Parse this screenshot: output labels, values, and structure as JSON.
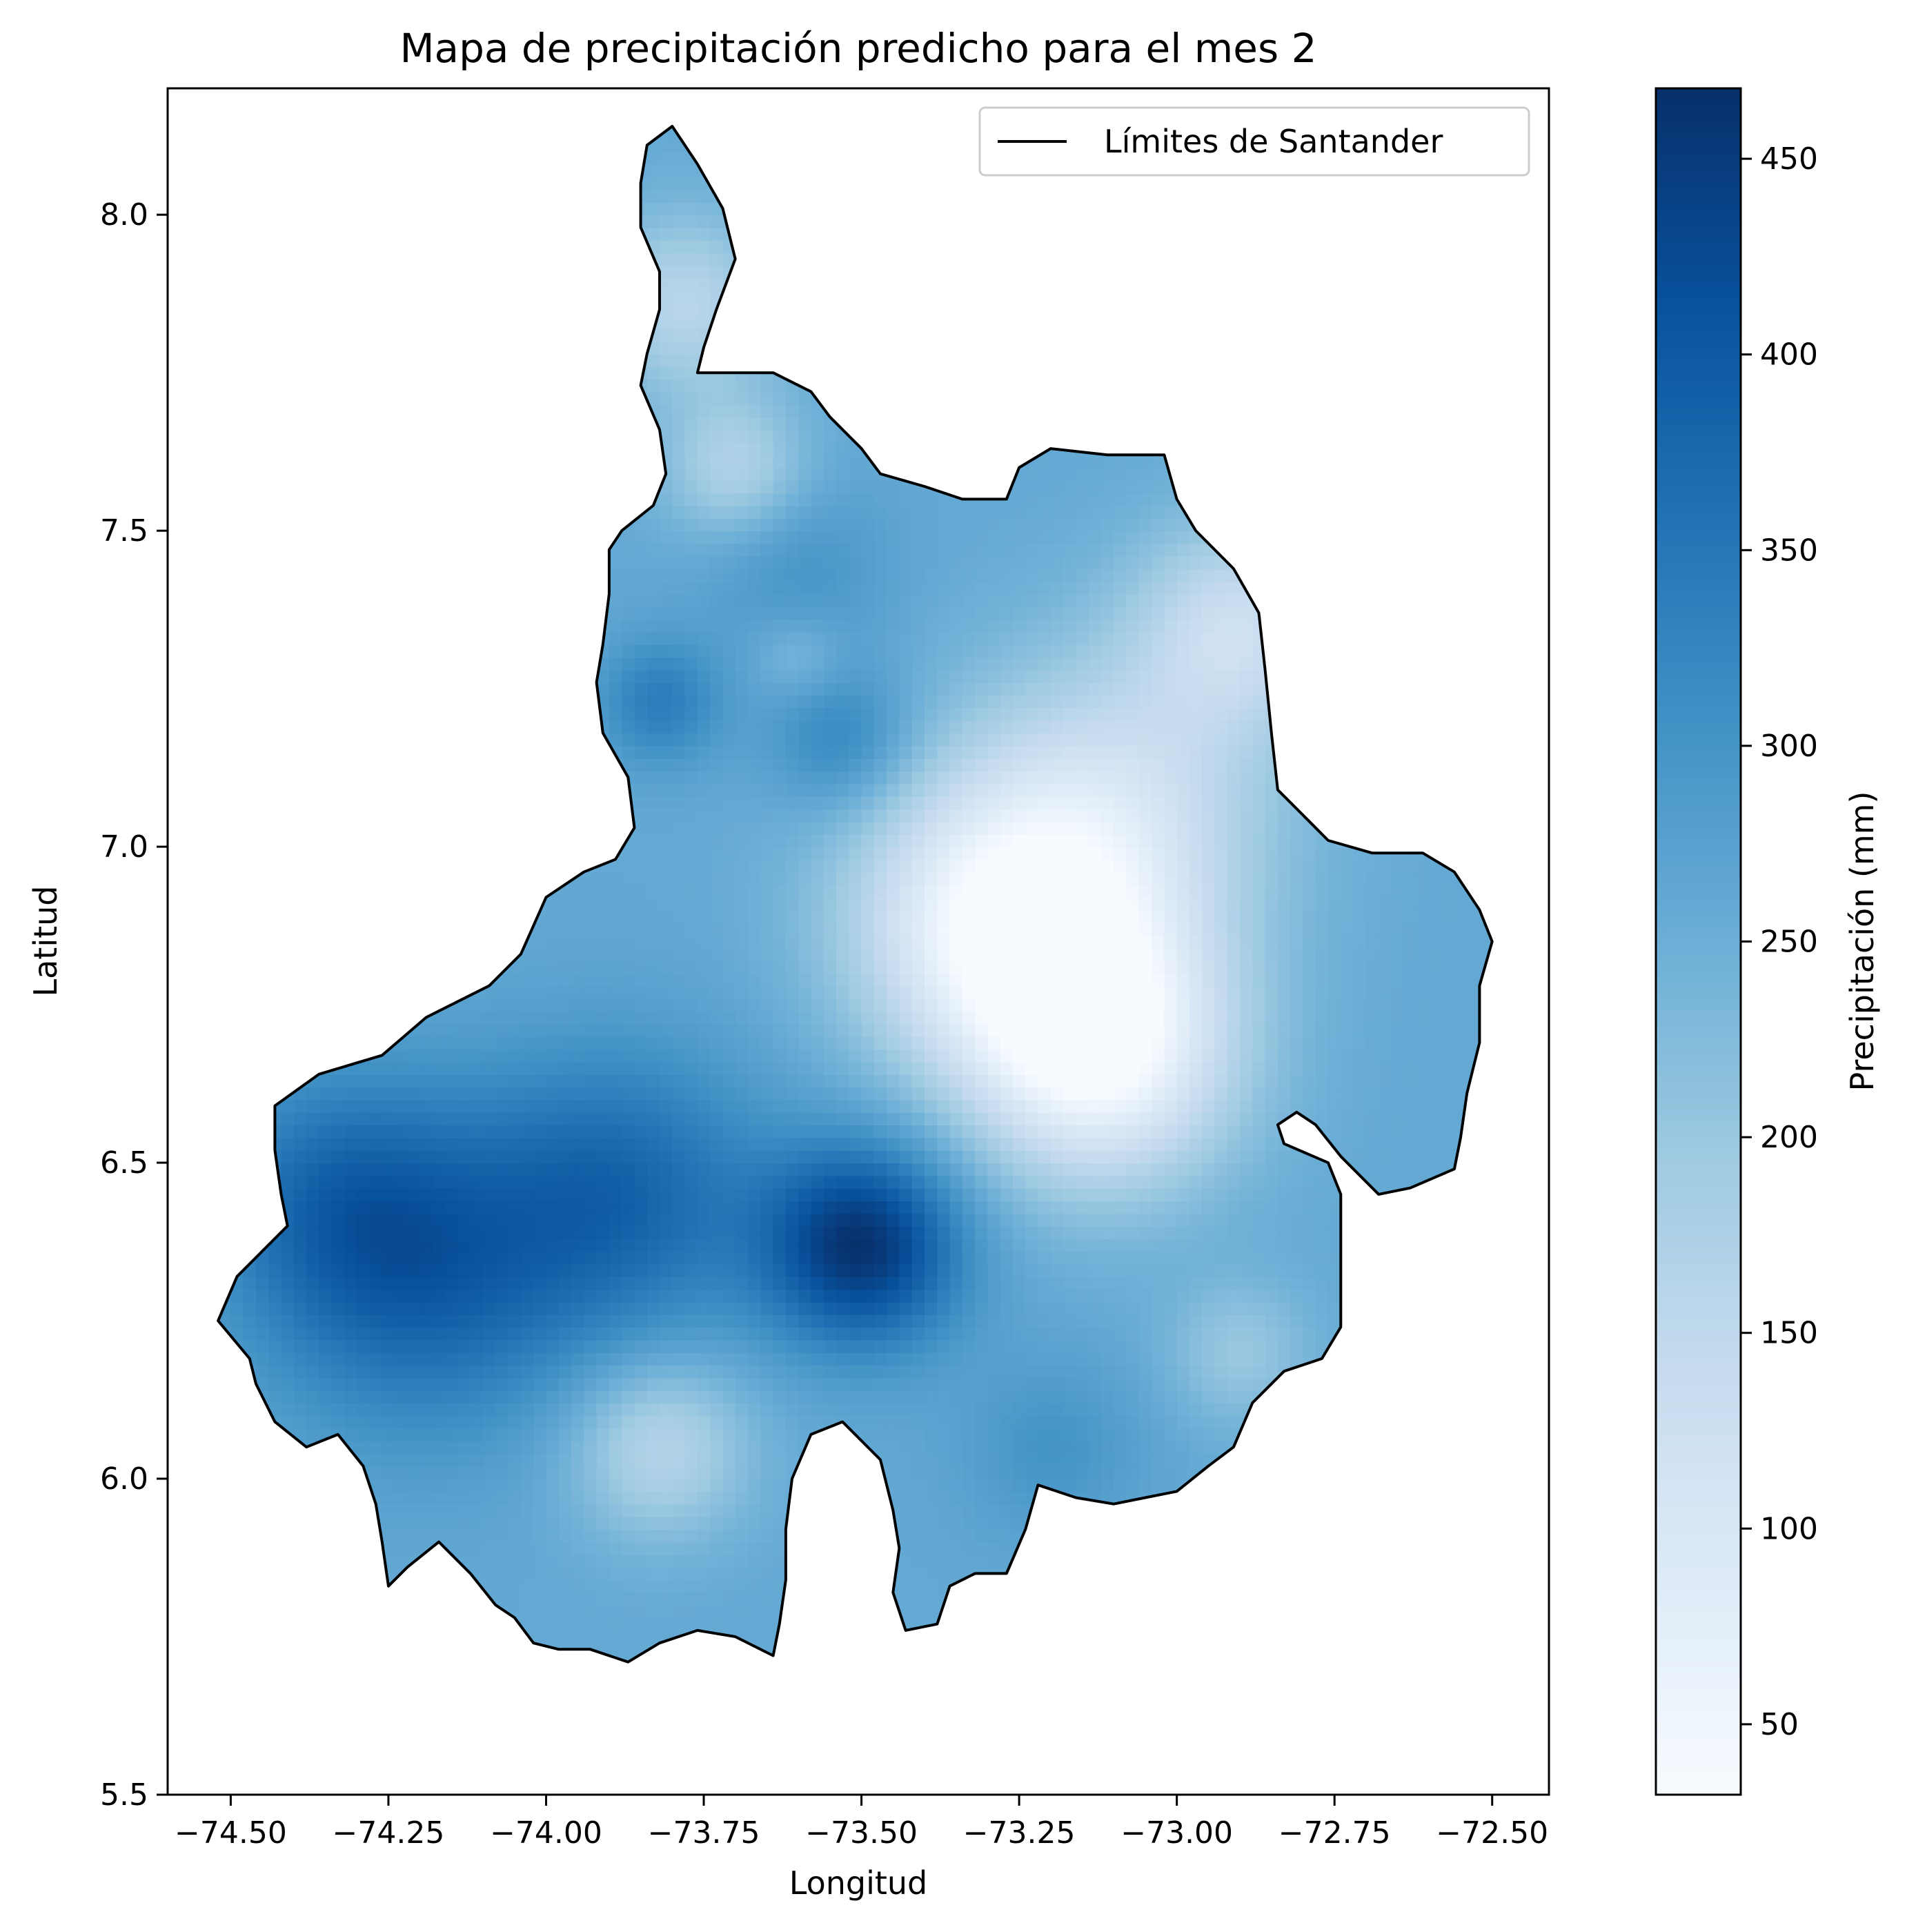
{
  "chart_data": {
    "type": "heatmap",
    "title": "Mapa de precipitación predicho para el mes 2",
    "xlabel": "Longitud",
    "ylabel": "Latitud",
    "xlim": [
      -74.6,
      -72.41
    ],
    "ylim": [
      5.5,
      8.2
    ],
    "x_ticks": [
      -74.5,
      -74.25,
      -74.0,
      -73.75,
      -73.5,
      -73.25,
      -73.0,
      -72.75,
      -72.5
    ],
    "x_tick_labels": [
      "−74.50",
      "−74.25",
      "−74.00",
      "−73.75",
      "−73.50",
      "−73.25",
      "−73.00",
      "−72.75",
      "−72.50"
    ],
    "y_ticks": [
      5.5,
      6.0,
      6.5,
      7.0,
      7.5,
      8.0
    ],
    "y_tick_labels": [
      "5.5",
      "6.0",
      "6.5",
      "7.0",
      "7.5",
      "8.0"
    ],
    "legend": {
      "placement": "top-right",
      "entries": [
        {
          "label": "Límites de Santander",
          "color": "#000000"
        }
      ]
    },
    "colorbar": {
      "label": "Precipitación (mm)",
      "colormap": "Blues",
      "range": [
        32,
        468
      ],
      "ticks": [
        50,
        100,
        150,
        200,
        250,
        300,
        350,
        400,
        450
      ],
      "tick_labels": [
        "50",
        "100",
        "150",
        "200",
        "250",
        "300",
        "350",
        "400",
        "450"
      ]
    },
    "boundary": [
      [
        -73.8,
        8.14
      ],
      [
        -73.76,
        8.08
      ],
      [
        -73.72,
        8.01
      ],
      [
        -73.7,
        7.93
      ],
      [
        -73.73,
        7.85
      ],
      [
        -73.75,
        7.79
      ],
      [
        -73.76,
        7.75
      ],
      [
        -73.64,
        7.75
      ],
      [
        -73.58,
        7.72
      ],
      [
        -73.55,
        7.68
      ],
      [
        -73.5,
        7.63
      ],
      [
        -73.47,
        7.59
      ],
      [
        -73.4,
        7.57
      ],
      [
        -73.34,
        7.55
      ],
      [
        -73.27,
        7.55
      ],
      [
        -73.25,
        7.6
      ],
      [
        -73.2,
        7.63
      ],
      [
        -73.11,
        7.62
      ],
      [
        -73.02,
        7.62
      ],
      [
        -73.0,
        7.55
      ],
      [
        -72.97,
        7.5
      ],
      [
        -72.91,
        7.44
      ],
      [
        -72.87,
        7.37
      ],
      [
        -72.86,
        7.28
      ],
      [
        -72.85,
        7.18
      ],
      [
        -72.84,
        7.09
      ],
      [
        -72.8,
        7.05
      ],
      [
        -72.76,
        7.01
      ],
      [
        -72.69,
        6.99
      ],
      [
        -72.61,
        6.99
      ],
      [
        -72.56,
        6.96
      ],
      [
        -72.52,
        6.9
      ],
      [
        -72.5,
        6.85
      ],
      [
        -72.52,
        6.78
      ],
      [
        -72.52,
        6.69
      ],
      [
        -72.54,
        6.61
      ],
      [
        -72.55,
        6.54
      ],
      [
        -72.56,
        6.49
      ],
      [
        -72.63,
        6.46
      ],
      [
        -72.68,
        6.45
      ],
      [
        -72.74,
        6.51
      ],
      [
        -72.78,
        6.56
      ],
      [
        -72.81,
        6.58
      ],
      [
        -72.84,
        6.56
      ],
      [
        -72.83,
        6.53
      ],
      [
        -72.76,
        6.5
      ],
      [
        -72.74,
        6.45
      ],
      [
        -72.74,
        6.38
      ],
      [
        -72.74,
        6.31
      ],
      [
        -72.74,
        6.24
      ],
      [
        -72.77,
        6.19
      ],
      [
        -72.83,
        6.17
      ],
      [
        -72.88,
        6.12
      ],
      [
        -72.91,
        6.05
      ],
      [
        -72.95,
        6.02
      ],
      [
        -73.0,
        5.98
      ],
      [
        -73.05,
        5.97
      ],
      [
        -73.1,
        5.96
      ],
      [
        -73.16,
        5.97
      ],
      [
        -73.22,
        5.99
      ],
      [
        -73.24,
        5.92
      ],
      [
        -73.27,
        5.85
      ],
      [
        -73.32,
        5.85
      ],
      [
        -73.36,
        5.83
      ],
      [
        -73.38,
        5.77
      ],
      [
        -73.43,
        5.76
      ],
      [
        -73.45,
        5.82
      ],
      [
        -73.44,
        5.89
      ],
      [
        -73.45,
        5.95
      ],
      [
        -73.47,
        6.03
      ],
      [
        -73.53,
        6.09
      ],
      [
        -73.58,
        6.07
      ],
      [
        -73.61,
        6.0
      ],
      [
        -73.62,
        5.92
      ],
      [
        -73.62,
        5.84
      ],
      [
        -73.63,
        5.77
      ],
      [
        -73.64,
        5.72
      ],
      [
        -73.7,
        5.75
      ],
      [
        -73.76,
        5.76
      ],
      [
        -73.82,
        5.74
      ],
      [
        -73.87,
        5.71
      ],
      [
        -73.93,
        5.73
      ],
      [
        -73.98,
        5.73
      ],
      [
        -74.02,
        5.74
      ],
      [
        -74.05,
        5.78
      ],
      [
        -74.08,
        5.8
      ],
      [
        -74.12,
        5.85
      ],
      [
        -74.17,
        5.9
      ],
      [
        -74.22,
        5.86
      ],
      [
        -74.25,
        5.83
      ],
      [
        -74.26,
        5.9
      ],
      [
        -74.27,
        5.96
      ],
      [
        -74.29,
        6.02
      ],
      [
        -74.33,
        6.07
      ],
      [
        -74.38,
        6.05
      ],
      [
        -74.43,
        6.09
      ],
      [
        -74.46,
        6.15
      ],
      [
        -74.47,
        6.19
      ],
      [
        -74.52,
        6.25
      ],
      [
        -74.49,
        6.32
      ],
      [
        -74.46,
        6.35
      ],
      [
        -74.43,
        6.38
      ],
      [
        -74.41,
        6.4
      ],
      [
        -74.42,
        6.45
      ],
      [
        -74.43,
        6.52
      ],
      [
        -74.43,
        6.59
      ],
      [
        -74.36,
        6.64
      ],
      [
        -74.26,
        6.67
      ],
      [
        -74.19,
        6.73
      ],
      [
        -74.09,
        6.78
      ],
      [
        -74.04,
        6.83
      ],
      [
        -74.0,
        6.92
      ],
      [
        -73.94,
        6.96
      ],
      [
        -73.89,
        6.98
      ],
      [
        -73.86,
        7.03
      ],
      [
        -73.87,
        7.11
      ],
      [
        -73.91,
        7.18
      ],
      [
        -73.92,
        7.26
      ],
      [
        -73.91,
        7.32
      ],
      [
        -73.9,
        7.4
      ],
      [
        -73.9,
        7.47
      ],
      [
        -73.88,
        7.5
      ],
      [
        -73.83,
        7.54
      ],
      [
        -73.81,
        7.59
      ],
      [
        -73.82,
        7.66
      ],
      [
        -73.85,
        7.73
      ],
      [
        -73.84,
        7.78
      ],
      [
        -73.82,
        7.85
      ],
      [
        -73.82,
        7.91
      ],
      [
        -73.85,
        7.98
      ],
      [
        -73.85,
        8.05
      ],
      [
        -73.84,
        8.11
      ],
      [
        -73.8,
        8.14
      ]
    ],
    "field_base_mm": 260,
    "field_hotspots": [
      {
        "lon": -73.5,
        "lat": 6.37,
        "delta_mm": 200,
        "spread_deg": 0.11
      },
      {
        "lon": -74.2,
        "lat": 6.33,
        "delta_mm": 120,
        "spread_deg": 0.18
      },
      {
        "lon": -73.88,
        "lat": 6.45,
        "delta_mm": 110,
        "spread_deg": 0.16
      },
      {
        "lon": -74.35,
        "lat": 6.45,
        "delta_mm": 70,
        "spread_deg": 0.14
      },
      {
        "lon": -73.82,
        "lat": 7.23,
        "delta_mm": 80,
        "spread_deg": 0.07
      },
      {
        "lon": -73.53,
        "lat": 7.17,
        "delta_mm": 70,
        "spread_deg": 0.08
      },
      {
        "lon": -73.2,
        "lat": 6.05,
        "delta_mm": 40,
        "spread_deg": 0.1
      },
      {
        "lon": -73.6,
        "lat": 7.44,
        "delta_mm": 40,
        "spread_deg": 0.1
      },
      {
        "lon": -73.12,
        "lat": 6.68,
        "delta_mm": -220,
        "spread_deg": 0.15
      },
      {
        "lon": -73.3,
        "lat": 6.88,
        "delta_mm": -180,
        "spread_deg": 0.16
      },
      {
        "lon": -73.1,
        "lat": 7.05,
        "delta_mm": -130,
        "spread_deg": 0.18
      },
      {
        "lon": -72.9,
        "lat": 7.35,
        "delta_mm": -120,
        "spread_deg": 0.12
      },
      {
        "lon": -73.78,
        "lat": 7.86,
        "delta_mm": -100,
        "spread_deg": 0.1
      },
      {
        "lon": -73.7,
        "lat": 7.6,
        "delta_mm": -90,
        "spread_deg": 0.08
      },
      {
        "lon": -73.82,
        "lat": 6.05,
        "delta_mm": -100,
        "spread_deg": 0.1
      },
      {
        "lon": -73.6,
        "lat": 7.3,
        "delta_mm": -40,
        "spread_deg": 0.05
      },
      {
        "lon": -72.9,
        "lat": 6.2,
        "delta_mm": -60,
        "spread_deg": 0.08
      }
    ]
  }
}
